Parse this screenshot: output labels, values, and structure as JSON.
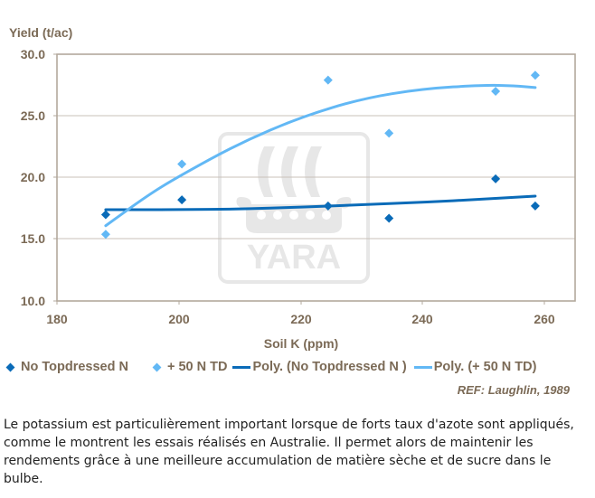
{
  "chart_data": {
    "type": "scatter",
    "title": "",
    "ylabel": "Yield (t/ac)",
    "xlabel": "Soil K (ppm)",
    "xlim": [
      180,
      265
    ],
    "ylim": [
      10.0,
      30.0
    ],
    "x_ticks": [
      "180",
      "200",
      "220",
      "240",
      "260"
    ],
    "y_ticks": [
      "30.0",
      "25.0",
      "20.0",
      "15.0",
      "10.0"
    ],
    "grid": "horizontal",
    "legend_position": "bottom",
    "series": [
      {
        "name": "No Topdressed N",
        "kind": "scatter",
        "color": "#0a6bb8",
        "x": [
          188,
          200.5,
          224.5,
          234.5,
          252,
          258.5
        ],
        "y": [
          17.0,
          18.2,
          17.7,
          16.7,
          19.9,
          17.7
        ]
      },
      {
        "name": "+ 50 N TD",
        "kind": "scatter",
        "color": "#62b8f5",
        "x": [
          188,
          200.5,
          224.5,
          234.5,
          252,
          258.5
        ],
        "y": [
          15.4,
          21.1,
          27.9,
          23.6,
          27.0,
          28.3
        ]
      },
      {
        "name": "Poly. (No Topdressed N )",
        "kind": "trendline",
        "color": "#0a6bb8",
        "x": [
          188,
          200,
          210,
          220,
          230,
          240,
          250,
          258.5
        ],
        "y": [
          17.4,
          17.4,
          17.45,
          17.6,
          17.8,
          18.0,
          18.25,
          18.5
        ]
      },
      {
        "name": "Poly. (+ 50 N TD)",
        "kind": "trendline",
        "color": "#62b8f5",
        "x": [
          188,
          195,
          200,
          210,
          220,
          230,
          240,
          250,
          255,
          258.5
        ],
        "y": [
          16.1,
          18.6,
          20.1,
          22.8,
          24.9,
          26.4,
          27.2,
          27.5,
          27.45,
          27.3
        ]
      }
    ],
    "annotations": [
      "REF: Laughlin, 1989"
    ],
    "watermark": "YARA"
  },
  "axis": {
    "y_title": "Yield (t/ac)",
    "x_title": "Soil K (ppm)"
  },
  "legend": {
    "items": [
      {
        "label": "No Topdressed N",
        "type": "marker",
        "color": "#0a6bb8"
      },
      {
        "label": "+ 50 N TD",
        "type": "marker",
        "color": "#62b8f5"
      },
      {
        "label": "Poly. (No Topdressed N )",
        "type": "line",
        "color": "#0a6bb8"
      },
      {
        "label": "Poly. (+ 50 N TD)",
        "type": "line",
        "color": "#62b8f5"
      }
    ]
  },
  "reference": "REF: Laughlin, 1989",
  "watermark_text": "YARA",
  "caption": {
    "text": "Le potassium est particulièrement important lorsque de forts taux d'azote sont appliqués, comme le montrent les essais réalisés en Australie. Il permet alors de maintenir les rendements grâce à une meilleure accumulation de matière sèche et de sucre dans le bulbe."
  },
  "colors": {
    "axis_text": "#7b6a56",
    "axis_line": "#b3a89c",
    "grid": "#c9c1b8",
    "watermark": "#e6e6e6"
  }
}
